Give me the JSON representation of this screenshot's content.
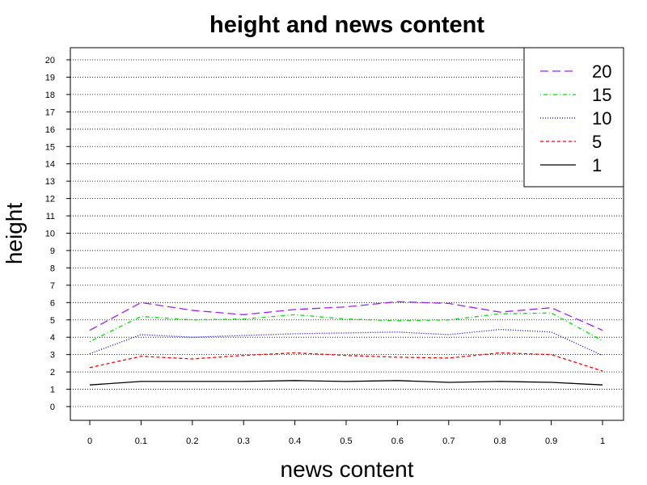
{
  "chart_data": {
    "type": "line",
    "title": "height and news content",
    "xlabel": "news content",
    "ylabel": "height",
    "x": [
      0,
      0.1,
      0.2,
      0.3,
      0.4,
      0.5,
      0.6,
      0.7,
      0.8,
      0.9,
      1
    ],
    "x_tick_labels": [
      "0",
      "0.1",
      "0.2",
      "0.3",
      "0.4",
      "0.5",
      "0.6",
      "0.7",
      "0.8",
      "0.9",
      "1"
    ],
    "y_tick_labels": [
      "0",
      "1",
      "2",
      "3",
      "4",
      "5",
      "6",
      "7",
      "8",
      "9",
      "10",
      "11",
      "12",
      "13",
      "14",
      "15",
      "16",
      "17",
      "18",
      "19",
      "20"
    ],
    "xlim": [
      0,
      1
    ],
    "ylim": [
      0,
      20
    ],
    "grid": "horizontal dotted",
    "legend_position": "top-right",
    "series": [
      {
        "name": "20",
        "color": "#a020f0",
        "dash": "longdash",
        "values": [
          4.4,
          6.0,
          5.55,
          5.3,
          5.6,
          5.75,
          6.05,
          5.95,
          5.45,
          5.7,
          4.4
        ]
      },
      {
        "name": "15",
        "color": "#00dd00",
        "dash": "dotdash",
        "values": [
          3.75,
          5.2,
          5.0,
          5.05,
          5.3,
          5.05,
          4.95,
          5.0,
          5.35,
          5.4,
          3.8
        ]
      },
      {
        "name": "10",
        "color": "#0000cc",
        "dash": "dotted",
        "values": [
          3.05,
          4.15,
          4.0,
          4.1,
          4.2,
          4.25,
          4.3,
          4.15,
          4.45,
          4.3,
          2.95
        ]
      },
      {
        "name": "5",
        "color": "#ff0000",
        "dash": "dashed",
        "values": [
          2.25,
          2.9,
          2.75,
          2.95,
          3.1,
          2.95,
          2.85,
          2.8,
          3.1,
          3.0,
          2.05
        ]
      },
      {
        "name": "1",
        "color": "#000000",
        "dash": "solid",
        "values": [
          1.25,
          1.45,
          1.45,
          1.45,
          1.5,
          1.45,
          1.5,
          1.4,
          1.45,
          1.4,
          1.25
        ]
      }
    ]
  }
}
